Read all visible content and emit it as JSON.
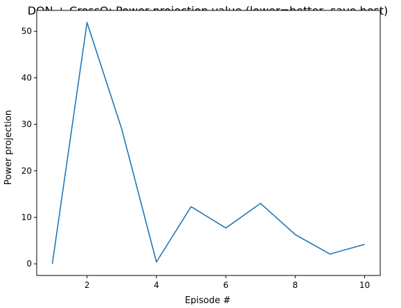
{
  "chart_data": {
    "type": "line",
    "title": "DQN + CrossQ: Power projection value (lower=better, save best)",
    "xlabel": "Episode #",
    "ylabel": "Power projection",
    "xlim": [
      0.55,
      10.45
    ],
    "ylim": [
      -2.5,
      54.5
    ],
    "xticks": [
      2,
      4,
      6,
      8,
      10
    ],
    "yticks": [
      0,
      10,
      20,
      30,
      40,
      50
    ],
    "grid": false,
    "series": [
      {
        "color": "#1f77b4",
        "x": [
          1,
          2,
          3,
          4,
          5,
          6,
          7,
          8,
          9,
          10
        ],
        "y": [
          0.0,
          51.9,
          29.0,
          0.4,
          12.3,
          7.7,
          13.0,
          6.3,
          2.1,
          4.2
        ]
      }
    ]
  }
}
